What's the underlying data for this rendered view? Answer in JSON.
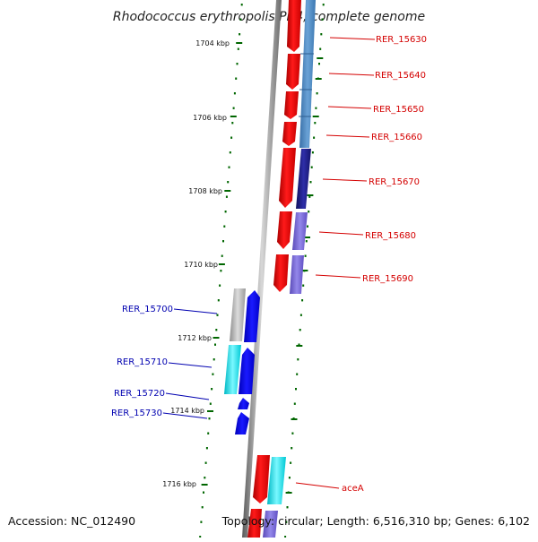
{
  "title": "Rhodococcus erythropolis PR4, complete genome",
  "footer": {
    "accession": "Accession: NC_012490",
    "topology": "Topology: circular; Length: 6,516,310 bp; Genes: 6,102"
  },
  "colors": {
    "red": "#ee0000",
    "steelblue": "#4a86c0",
    "navy": "#1a1a80",
    "slate": "#7060cc",
    "blue": "#0000ee",
    "cyan": "#00e5ee",
    "gray": "#b0b0b0",
    "tick": "#006600",
    "backbone": "#888888"
  },
  "kbp_labels": [
    {
      "text": "1704 kbp",
      "kbp": 1704
    },
    {
      "text": "1706 kbp",
      "kbp": 1706
    },
    {
      "text": "1708 kbp",
      "kbp": 1708
    },
    {
      "text": "1710 kbp",
      "kbp": 1710
    },
    {
      "text": "1712 kbp",
      "kbp": 1712
    },
    {
      "text": "1714 kbp",
      "kbp": 1714
    },
    {
      "text": "1716 kbp",
      "kbp": 1716
    }
  ],
  "genes_right": [
    "RER_15630",
    "RER_15640",
    "RER_15650",
    "RER_15660",
    "RER_15670",
    "RER_15680",
    "RER_15690",
    "aceA"
  ],
  "genes_left": [
    "RER_15700",
    "RER_15710",
    "RER_15720",
    "RER_15730"
  ]
}
